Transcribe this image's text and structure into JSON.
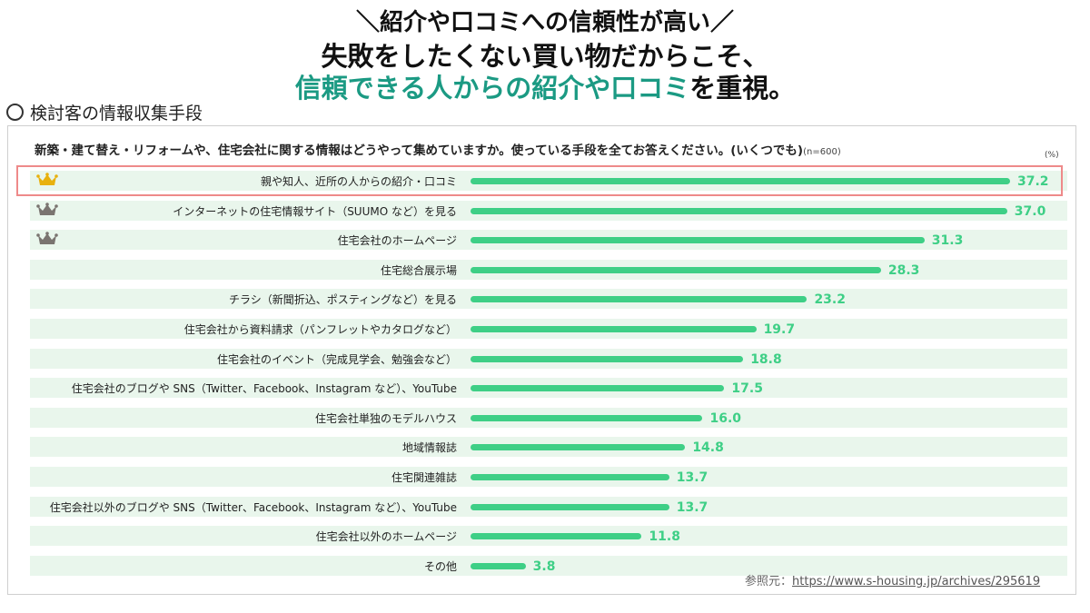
{
  "header": {
    "line1": "＼紹介や口コミへの信頼性が高い／",
    "line2": "失敗をしたくない買い物だからこそ、",
    "line3_accent": "信頼できる人からの紹介や口コミ",
    "line3_rest": "を重視。"
  },
  "section_label": "検討客の情報収集手段",
  "colors": {
    "accent": "#1b9a83",
    "bar": "#3ecf86",
    "stripe": "#e9f6ec",
    "highlight": "#ee8a8a",
    "crown_gold": "#e8b10e",
    "crown_gray": "#7a7470"
  },
  "chart_data": {
    "type": "bar",
    "orientation": "horizontal",
    "title": "新築・建て替え・リフォームや、住宅会社に関する情報はどうやって集めていますか。使っている手段を全てお答えください。(いくつでも)",
    "sample_note": "(n=600)",
    "unit": "(%)",
    "xlim": [
      0,
      37.2
    ],
    "categories": [
      "親や知人、近所の人からの紹介・口コミ",
      "インターネットの住宅情報サイト（SUUMO など）を見る",
      "住宅会社のホームページ",
      "住宅総合展示場",
      "チラシ（新聞折込、ポスティングなど）を見る",
      "住宅会社から資料請求（パンフレットやカタログなど）",
      "住宅会社のイベント（完成見学会、勉強会など）",
      "住宅会社のブログや SNS（Twitter、Facebook、Instagram など）、YouTube",
      "住宅会社単独のモデルハウス",
      "地域情報誌",
      "住宅関連雑誌",
      "住宅会社以外のブログや SNS（Twitter、Facebook、Instagram など）、YouTube",
      "住宅会社以外のホームページ",
      "その他"
    ],
    "values": [
      37.2,
      37.0,
      31.3,
      28.3,
      23.2,
      19.7,
      18.8,
      17.5,
      16.0,
      14.8,
      13.7,
      13.7,
      11.8,
      3.8
    ],
    "value_labels": [
      "37.2",
      "37.0",
      "31.3",
      "28.3",
      "23.2",
      "19.7",
      "18.8",
      "17.5",
      "16.0",
      "14.8",
      "13.7",
      "13.7",
      "11.8",
      "3.8"
    ],
    "ranks": [
      "gold",
      "gray",
      "gray",
      null,
      null,
      null,
      null,
      null,
      null,
      null,
      null,
      null,
      null,
      null
    ],
    "highlighted_index": 0
  },
  "source": {
    "prefix": "参照元：",
    "url": "https://www.s-housing.jp/archives/295619"
  }
}
